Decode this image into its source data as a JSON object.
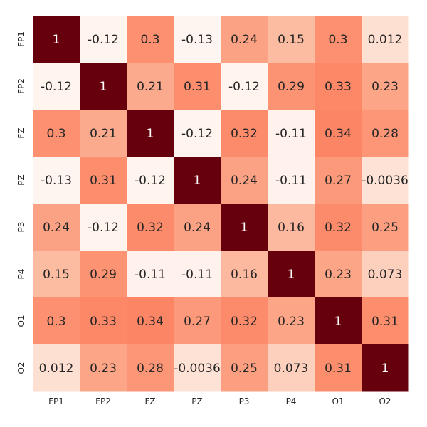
{
  "chart_data": {
    "type": "heatmap",
    "title": "",
    "xlabel": "",
    "ylabel": "",
    "x_categories": [
      "FP1",
      "FP2",
      "FZ",
      "PZ",
      "P3",
      "P4",
      "O1",
      "O2"
    ],
    "y_categories": [
      "FP1",
      "FP2",
      "FZ",
      "PZ",
      "P3",
      "P4",
      "O1",
      "O2"
    ],
    "values": [
      [
        1,
        -0.12,
        0.3,
        -0.13,
        0.24,
        0.15,
        0.3,
        0.012
      ],
      [
        -0.12,
        1,
        0.21,
        0.31,
        -0.12,
        0.29,
        0.33,
        0.23
      ],
      [
        0.3,
        0.21,
        1,
        -0.12,
        0.32,
        -0.11,
        0.34,
        0.28
      ],
      [
        -0.13,
        0.31,
        -0.12,
        1,
        0.24,
        -0.11,
        0.27,
        -0.0036
      ],
      [
        0.24,
        -0.12,
        0.32,
        0.24,
        1,
        0.16,
        0.32,
        0.25
      ],
      [
        0.15,
        0.29,
        -0.11,
        -0.11,
        0.16,
        1,
        0.23,
        0.073
      ],
      [
        0.3,
        0.33,
        0.34,
        0.27,
        0.32,
        0.23,
        1,
        0.31
      ],
      [
        0.012,
        0.23,
        0.28,
        -0.0036,
        0.25,
        0.073,
        0.31,
        1
      ]
    ],
    "value_labels": [
      [
        "1",
        "-0.12",
        "0.3",
        "-0.13",
        "0.24",
        "0.15",
        "0.3",
        "0.012"
      ],
      [
        "-0.12",
        "1",
        "0.21",
        "0.31",
        "-0.12",
        "0.29",
        "0.33",
        "0.23"
      ],
      [
        "0.3",
        "0.21",
        "1",
        "-0.12",
        "0.32",
        "-0.11",
        "0.34",
        "0.28"
      ],
      [
        "-0.13",
        "0.31",
        "-0.12",
        "1",
        "0.24",
        "-0.11",
        "0.27",
        "-0.0036"
      ],
      [
        "0.24",
        "-0.12",
        "0.32",
        "0.24",
        "1",
        "0.16",
        "0.32",
        "0.25"
      ],
      [
        "0.15",
        "0.29",
        "-0.11",
        "-0.11",
        "0.16",
        "1",
        "0.23",
        "0.073"
      ],
      [
        "0.3",
        "0.33",
        "0.34",
        "0.27",
        "0.32",
        "0.23",
        "1",
        "0.31"
      ],
      [
        "0.012",
        "0.23",
        "0.28",
        "-0.0036",
        "0.25",
        "0.073",
        "0.31",
        "1"
      ]
    ],
    "colormap": "Reds",
    "value_range": [
      -0.13,
      1
    ],
    "annotated": true,
    "grid": false,
    "legend": "none"
  }
}
